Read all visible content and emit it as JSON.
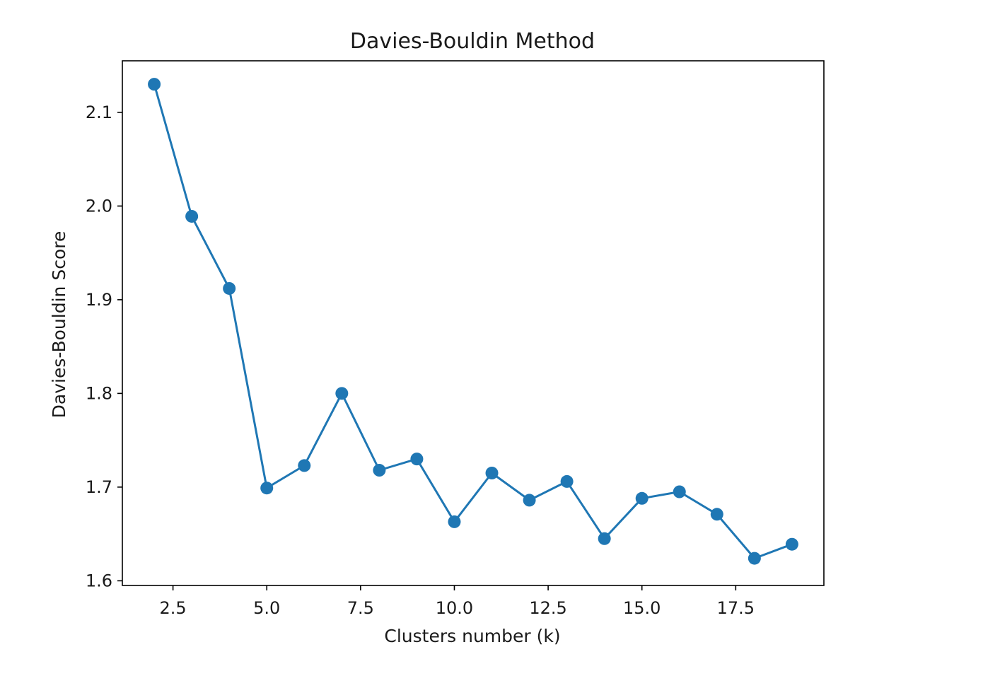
{
  "chart_data": {
    "type": "line",
    "title": "Davies-Bouldin Method",
    "xlabel": "Clusters number (k)",
    "ylabel": "Davies-Bouldin Score",
    "xlim": [
      1.15,
      19.85
    ],
    "ylim": [
      1.595,
      2.155
    ],
    "x_ticks": [
      2.5,
      5.0,
      7.5,
      10.0,
      12.5,
      15.0,
      17.5
    ],
    "x_tick_labels": [
      "2.5",
      "5.0",
      "7.5",
      "10.0",
      "12.5",
      "15.0",
      "17.5"
    ],
    "y_ticks": [
      1.6,
      1.7,
      1.8,
      1.9,
      2.0,
      2.1
    ],
    "y_tick_labels": [
      "1.6",
      "1.7",
      "1.8",
      "1.9",
      "2.0",
      "2.1"
    ],
    "grid": false,
    "series": [
      {
        "color": "#1f77b4",
        "marker": "circle",
        "x": [
          2,
          3,
          4,
          5,
          6,
          7,
          8,
          9,
          10,
          11,
          12,
          13,
          14,
          15,
          16,
          17,
          18,
          19
        ],
        "y": [
          2.13,
          1.989,
          1.912,
          1.699,
          1.723,
          1.8,
          1.718,
          1.73,
          1.663,
          1.715,
          1.686,
          1.706,
          1.645,
          1.688,
          1.695,
          1.671,
          1.624,
          1.639
        ]
      }
    ]
  }
}
